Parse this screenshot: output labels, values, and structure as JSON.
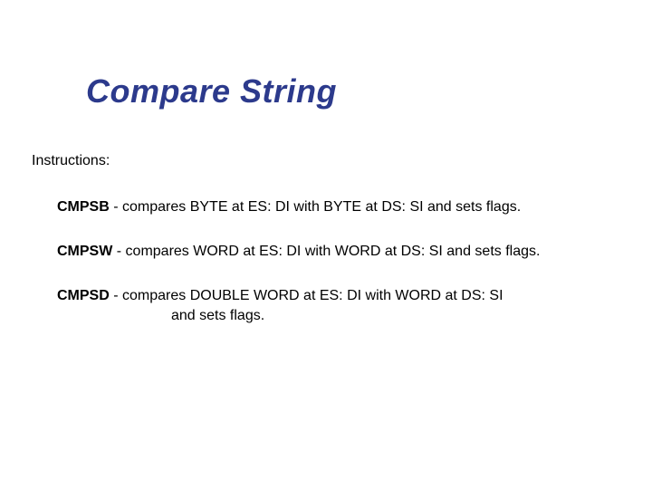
{
  "slide": {
    "title": "Compare String",
    "subhead": "Instructions:",
    "items": [
      {
        "mnemonic": "CMPSB",
        "desc": " - compares BYTE at ES: DI with BYTE at DS: SI and sets flags."
      },
      {
        "mnemonic": "CMPSW",
        "desc": " - compares WORD at ES: DI with WORD at DS: SI and sets flags."
      },
      {
        "mnemonic": "CMPSD",
        "desc": " - compares DOUBLE WORD at ES: DI with WORD at DS: SI",
        "cont": "and sets flags."
      }
    ]
  },
  "style": {
    "title_color": "#2c3a8c",
    "text_color": "#000000",
    "background_color": "#ffffff",
    "title_fontsize": 36,
    "body_fontsize": 16,
    "title_italic": true,
    "title_bold": true,
    "mnemonic_bold": true
  }
}
